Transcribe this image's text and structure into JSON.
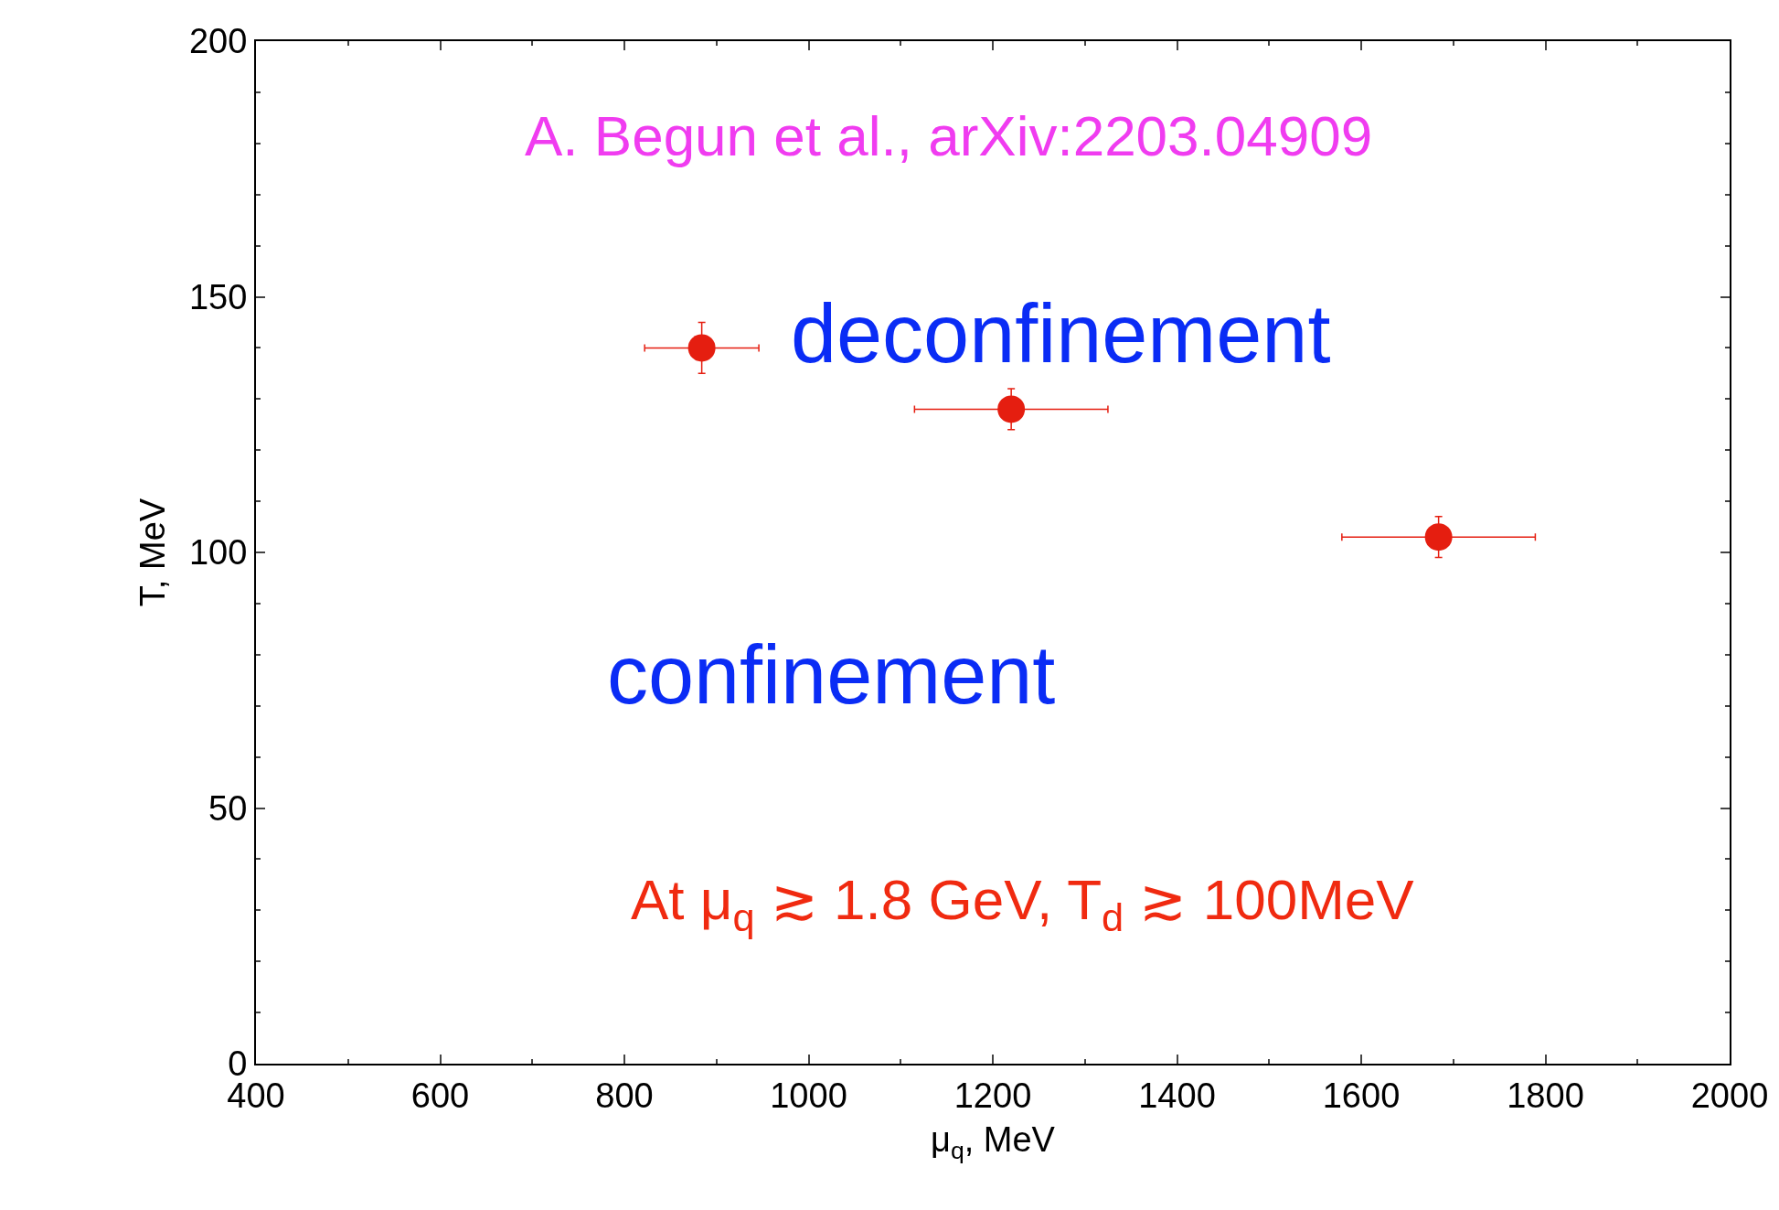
{
  "chart_data": {
    "type": "scatter",
    "xlabel": "μ$_{q}$, MeV",
    "ylabel": "T, MeV",
    "x": [
      884,
      1220,
      1684
    ],
    "values": [
      140,
      128,
      103
    ],
    "xerrors": [
      62,
      105,
      105
    ],
    "errors": [
      5,
      4,
      4
    ],
    "color": "#e51e10",
    "marker": "circle",
    "xlim": [
      400,
      2000
    ],
    "xticks": [
      400,
      600,
      800,
      1000,
      1200,
      1400,
      1600,
      1800,
      2000
    ],
    "ylim": [
      0,
      200
    ],
    "yticks": [
      0,
      50,
      100,
      150,
      200
    ],
    "legend": false,
    "annotations": [
      "A. Begun et al., arXiv:2203.04909",
      "deconfinement",
      "confinement",
      "At μ$_{q}$ ≳ 1.8 GeV, T$_{d}$ ≳ 100MeV"
    ]
  }
}
